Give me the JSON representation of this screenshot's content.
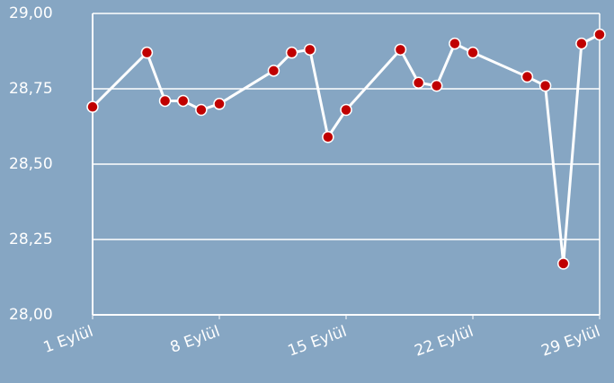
{
  "chart_data": {
    "type": "line",
    "x": [
      1,
      4,
      5,
      6,
      7,
      8,
      11,
      12,
      13,
      14,
      15,
      18,
      19,
      20,
      21,
      22,
      25,
      26,
      27,
      28,
      29
    ],
    "series": [
      {
        "color": "#ffffff",
        "marker_color": "#c00000",
        "values": [
          28.69,
          28.87,
          28.71,
          28.71,
          28.68,
          28.7,
          28.81,
          28.87,
          28.88,
          28.59,
          28.68,
          28.88,
          28.77,
          28.76,
          28.9,
          28.87,
          28.79,
          28.76,
          28.17,
          28.9,
          28.93
        ]
      }
    ],
    "xlim": [
      1,
      29
    ],
    "xticks": [
      {
        "value": 1,
        "label": "1 Eylül"
      },
      {
        "value": 8,
        "label": "8 Eylül"
      },
      {
        "value": 15,
        "label": "15 Eylül"
      },
      {
        "value": 22,
        "label": "22 Eylül"
      },
      {
        "value": 29,
        "label": "29 Eylül"
      }
    ],
    "ylim": [
      28,
      29
    ],
    "yticks": [
      {
        "value": 28,
        "label": "28,00"
      },
      {
        "value": 28.25,
        "label": "28,25"
      },
      {
        "value": 28.5,
        "label": "28,50"
      },
      {
        "value": 28.75,
        "label": "28,75"
      },
      {
        "value": 29,
        "label": "29,00"
      }
    ],
    "grid": true
  }
}
